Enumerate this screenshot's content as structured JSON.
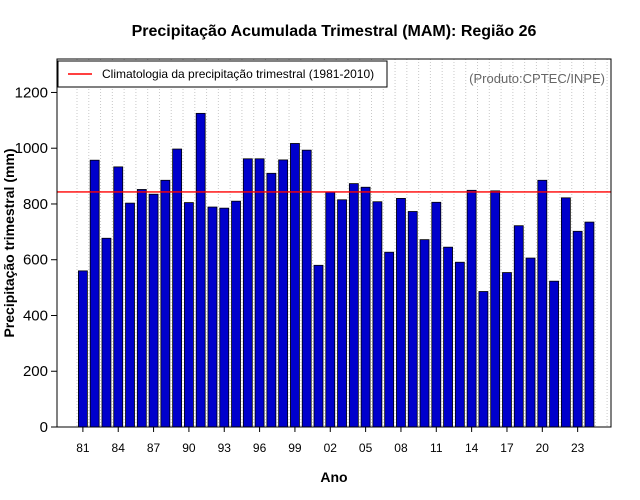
{
  "chart_data": {
    "type": "bar",
    "title": "Precipitação Acumulada Trimestral (MAM): Região 26",
    "xlabel": "Ano",
    "ylabel": "Precipitação trimestral (mm)",
    "ylim": [
      0,
      1320
    ],
    "yticks": [
      0,
      200,
      400,
      600,
      800,
      1000,
      1200
    ],
    "ytick_labels": [
      "0",
      "200",
      "400",
      "600",
      "800",
      "1000",
      "1200"
    ],
    "categories": [
      "81",
      "82",
      "83",
      "84",
      "85",
      "86",
      "87",
      "88",
      "89",
      "90",
      "91",
      "92",
      "93",
      "94",
      "95",
      "96",
      "97",
      "98",
      "99",
      "00",
      "01",
      "02",
      "03",
      "04",
      "05",
      "06",
      "07",
      "08",
      "09",
      "10",
      "11",
      "12",
      "13",
      "14",
      "15",
      "16",
      "17",
      "18",
      "19",
      "20",
      "21",
      "22",
      "23",
      "24"
    ],
    "xtick_labels": [
      "81",
      "84",
      "87",
      "90",
      "93",
      "96",
      "99",
      "02",
      "05",
      "08",
      "11",
      "14",
      "17",
      "20",
      "23"
    ],
    "series": [
      {
        "name": "Precipitação trimestral",
        "color": "#0000cc",
        "values": [
          560,
          957,
          677,
          933,
          803,
          852,
          835,
          885,
          997,
          805,
          1125,
          789,
          785,
          810,
          962,
          962,
          910,
          958,
          1017,
          993,
          580,
          843,
          815,
          873,
          860,
          808,
          627,
          820,
          773,
          672,
          806,
          645,
          591,
          849,
          486,
          847,
          554,
          722,
          606,
          885,
          523,
          822,
          702,
          735
        ]
      }
    ],
    "reference_line": {
      "label": "Climatologia da precipitação trimestral (1981-2010)",
      "value": 843,
      "color": "#ff0000"
    },
    "grid": "vertical-dotted",
    "legend_position": "top-left",
    "annotation": "(Produto:CPTEC/INPE)"
  }
}
